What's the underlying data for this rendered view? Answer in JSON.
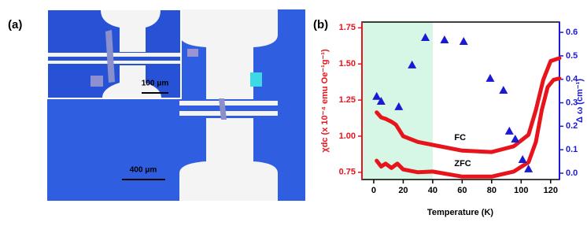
{
  "panel_a": {
    "label": "(a)",
    "inset_scale": "100 μm",
    "scale": "400 μm"
  },
  "chart_data": {
    "type": "line",
    "label": "(b)",
    "x_label": "Temperature (K)",
    "y_label": "χdc (x 10⁻⁴ emu Oe⁻¹g⁻¹)",
    "y2_label": "Δ ω (cm⁻¹)",
    "xlim": [
      -8,
      126
    ],
    "xticks": [
      0,
      20,
      40,
      60,
      80,
      100,
      120
    ],
    "ylim": [
      0.7,
      1.79
    ],
    "yticks": [
      0.75,
      {
        "value": 1.0,
        "label": "1.00"
      },
      1.25,
      {
        "value": 1.5,
        "label": "1.50"
      },
      1.75
    ],
    "y2lim": [
      -0.027,
      0.644
    ],
    "y2ticks": [
      {
        "value": 0,
        "label": "0.0"
      },
      0.1,
      0.2,
      0.3,
      0.4,
      0.5,
      0.6
    ],
    "shade": {
      "x": [
        -8,
        40
      ],
      "color": "#d6f6e6"
    },
    "series": [
      {
        "name": "FC",
        "type": "line",
        "color": "#e8141c",
        "x": [
          2,
          5,
          8,
          12,
          15,
          20,
          30,
          40,
          60,
          80,
          95,
          105,
          110,
          115,
          120,
          126
        ],
        "values": [
          1.165,
          1.13,
          1.12,
          1.1,
          1.08,
          1.0,
          0.96,
          0.94,
          0.9,
          0.89,
          0.93,
          1.01,
          1.18,
          1.39,
          1.52,
          1.54
        ]
      },
      {
        "name": "ZFC",
        "type": "line",
        "color": "#e8141c",
        "x": [
          2,
          5,
          8,
          12,
          16,
          20,
          30,
          40,
          60,
          80,
          95,
          105,
          110,
          114,
          118,
          122,
          126
        ],
        "values": [
          0.83,
          0.79,
          0.81,
          0.78,
          0.81,
          0.77,
          0.75,
          0.755,
          0.72,
          0.72,
          0.755,
          0.82,
          0.96,
          1.18,
          1.34,
          1.39,
          1.4
        ]
      },
      {
        "type": "scatter",
        "axis": "y2",
        "color": "#1a1ad6",
        "x": [
          2,
          5,
          17,
          26,
          35,
          48,
          61,
          79,
          88,
          92,
          96,
          101,
          105
        ],
        "values": [
          0.326,
          0.305,
          0.282,
          0.46,
          0.577,
          0.567,
          0.56,
          0.403,
          0.352,
          0.178,
          0.144,
          0.057,
          0.017
        ]
      }
    ]
  }
}
